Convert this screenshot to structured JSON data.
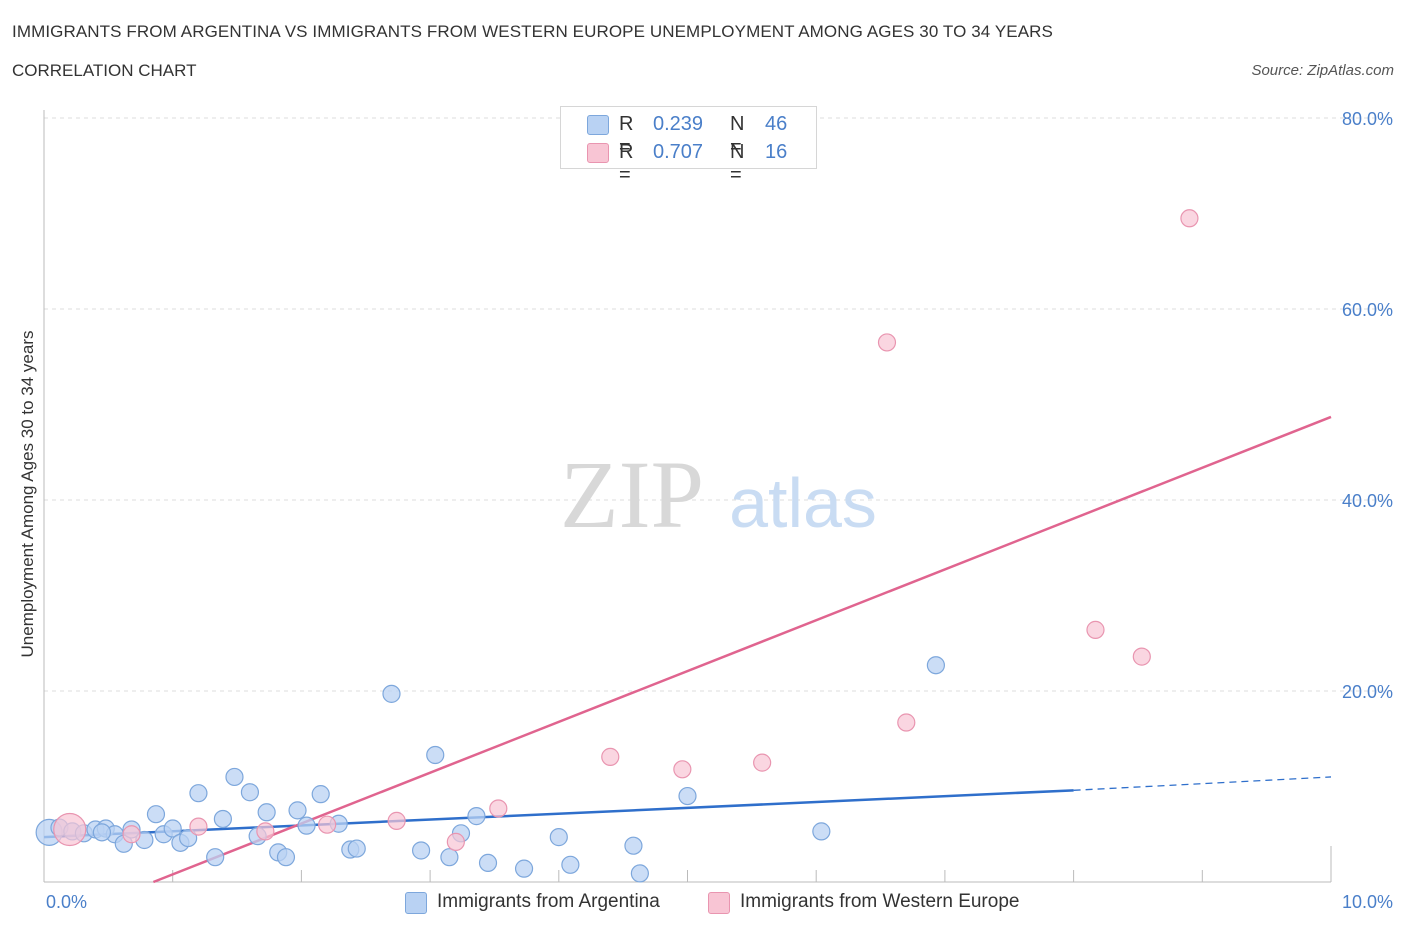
{
  "header": {
    "title": "IMMIGRANTS FROM ARGENTINA VS IMMIGRANTS FROM WESTERN EUROPE UNEMPLOYMENT AMONG AGES 30 TO 34 YEARS",
    "subtitle": "CORRELATION CHART",
    "source": "Source: ZipAtlas.com"
  },
  "watermark": {
    "zip": "ZIP",
    "atlas": "atlas"
  },
  "legend_top": {
    "rows": [
      {
        "r_label": "R =",
        "r_value": "0.239",
        "n_label": "N =",
        "n_value": "46"
      },
      {
        "r_label": "R =",
        "r_value": "0.707",
        "n_label": "N =",
        "n_value": "16"
      }
    ]
  },
  "legend_bottom": {
    "items": [
      {
        "label": "Immigrants from Argentina"
      },
      {
        "label": "Immigrants from Western Europe"
      }
    ]
  },
  "colors": {
    "blue_fill": "#b9d2f3",
    "blue_stroke": "#7da7dc",
    "blue_line": "#2f6fcb",
    "pink_fill": "#f8c5d4",
    "pink_stroke": "#e995b0",
    "pink_line": "#e0648f",
    "axis_text": "#4a7fc9",
    "grid": "#dddddd"
  },
  "chart_data": {
    "type": "scatter",
    "title": "IMMIGRANTS FROM ARGENTINA VS IMMIGRANTS FROM WESTERN EUROPE UNEMPLOYMENT AMONG AGES 30 TO 34 YEARS",
    "subtitle": "CORRELATION CHART",
    "xlabel": "",
    "ylabel": "Unemployment Among Ages 30 to 34 years",
    "xlim": [
      0,
      10
    ],
    "ylim": [
      0,
      80
    ],
    "x_tick_labels": [
      "0.0%",
      "10.0%"
    ],
    "y_ticks": [
      20,
      40,
      60,
      80
    ],
    "y_tick_labels": [
      "20.0%",
      "40.0%",
      "60.0%",
      "80.0%"
    ],
    "grid": true,
    "legend_position": "top-center",
    "series": [
      {
        "name": "Immigrants from Argentina",
        "R": 0.239,
        "N": 46,
        "points": [
          [
            0.04,
            5.2
          ],
          [
            0.12,
            5.7
          ],
          [
            0.22,
            5.3
          ],
          [
            0.31,
            5.1
          ],
          [
            0.4,
            5.5
          ],
          [
            0.48,
            5.6
          ],
          [
            0.55,
            5.0
          ],
          [
            0.62,
            4.0
          ],
          [
            0.68,
            5.5
          ],
          [
            0.78,
            4.4
          ],
          [
            0.87,
            7.1
          ],
          [
            0.93,
            5.0
          ],
          [
            1.0,
            5.6
          ],
          [
            1.06,
            4.1
          ],
          [
            1.12,
            4.6
          ],
          [
            1.2,
            9.3
          ],
          [
            1.33,
            2.6
          ],
          [
            1.39,
            6.6
          ],
          [
            1.48,
            11.0
          ],
          [
            1.6,
            9.4
          ],
          [
            1.66,
            4.8
          ],
          [
            1.73,
            7.3
          ],
          [
            1.82,
            3.1
          ],
          [
            1.88,
            2.6
          ],
          [
            1.97,
            7.5
          ],
          [
            2.04,
            5.9
          ],
          [
            2.15,
            9.2
          ],
          [
            2.29,
            6.1
          ],
          [
            2.38,
            3.4
          ],
          [
            2.43,
            3.5
          ],
          [
            2.7,
            19.7
          ],
          [
            2.93,
            3.3
          ],
          [
            3.04,
            13.3
          ],
          [
            3.15,
            2.6
          ],
          [
            3.24,
            5.1
          ],
          [
            3.36,
            6.9
          ],
          [
            3.45,
            2.0
          ],
          [
            3.73,
            1.4
          ],
          [
            4.0,
            4.7
          ],
          [
            4.09,
            1.8
          ],
          [
            4.58,
            3.8
          ],
          [
            4.63,
            0.9
          ],
          [
            5.0,
            9.0
          ],
          [
            6.04,
            5.3
          ],
          [
            6.93,
            22.7
          ],
          [
            0.45,
            5.2
          ]
        ],
        "trend": {
          "x": [
            0.0,
            8.0
          ],
          "y": [
            4.7,
            9.6
          ],
          "dashed_to": [
            10.0,
            11.0
          ]
        }
      },
      {
        "name": "Immigrants from Western Europe",
        "R": 0.707,
        "N": 16,
        "points": [
          [
            0.2,
            5.5
          ],
          [
            0.68,
            5.0
          ],
          [
            1.2,
            5.8
          ],
          [
            1.72,
            5.3
          ],
          [
            2.2,
            6.0
          ],
          [
            2.74,
            6.4
          ],
          [
            3.2,
            4.2
          ],
          [
            3.53,
            7.7
          ],
          [
            4.4,
            13.1
          ],
          [
            4.96,
            11.8
          ],
          [
            5.58,
            12.5
          ],
          [
            6.55,
            56.5
          ],
          [
            6.7,
            16.7
          ],
          [
            8.17,
            26.4
          ],
          [
            8.53,
            23.6
          ],
          [
            8.9,
            69.5
          ]
        ],
        "trend": {
          "x": [
            0.85,
            10.0
          ],
          "y": [
            0.0,
            48.7
          ]
        }
      }
    ]
  }
}
